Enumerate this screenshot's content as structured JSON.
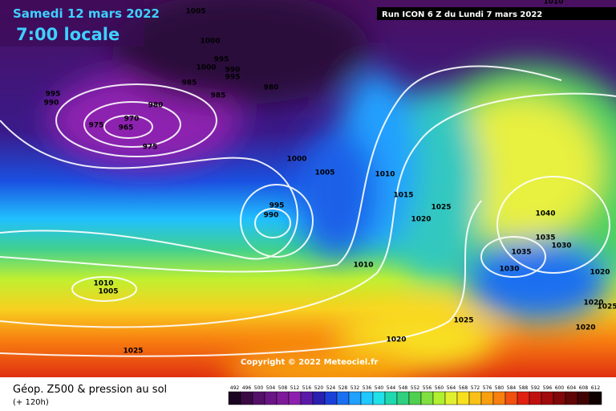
{
  "header": {
    "date": "Samedi 12 mars 2022",
    "time": "7:00 locale",
    "run": "Run ICON 6 Z du Lundi 7 mars 2022"
  },
  "copyright": "Copyright © 2022 Meteociel.fr",
  "footer": {
    "title": "Géop. Z500 & pression au sol",
    "lead": "(+ 120h)"
  },
  "isobar_labels": [
    1005,
    1000,
    995,
    1000,
    990,
    995,
    985,
    980,
    985,
    995,
    990,
    980,
    970,
    975,
    965,
    975,
    1000,
    1005,
    1010,
    1015,
    995,
    990,
    1025,
    1020,
    1040,
    1035,
    1030,
    1035,
    1030,
    1010,
    1020,
    1010,
    1005,
    1020,
    1025,
    1025,
    1020,
    1020,
    1025,
    1010
  ],
  "scale": {
    "values": [
      492,
      496,
      500,
      504,
      508,
      512,
      516,
      520,
      524,
      528,
      532,
      536,
      540,
      544,
      548,
      552,
      556,
      560,
      564,
      568,
      572,
      576,
      580,
      584,
      588,
      592,
      596,
      600,
      604,
      608,
      612
    ],
    "colors": [
      "#1a0520",
      "#3a0a45",
      "#55106a",
      "#6a1585",
      "#7d1a9a",
      "#8e20b0",
      "#5a1aa8",
      "#2a20b0",
      "#1a40d8",
      "#1a70f0",
      "#20a0ff",
      "#20c8ff",
      "#20e0e8",
      "#20d8b0",
      "#30d080",
      "#50d050",
      "#80e040",
      "#b0f030",
      "#e0f030",
      "#f8e020",
      "#f8c018",
      "#f8a010",
      "#f88010",
      "#f05010",
      "#e02010",
      "#c01010",
      "#a00a0a",
      "#800808",
      "#600505",
      "#400303",
      "#100000"
    ]
  }
}
